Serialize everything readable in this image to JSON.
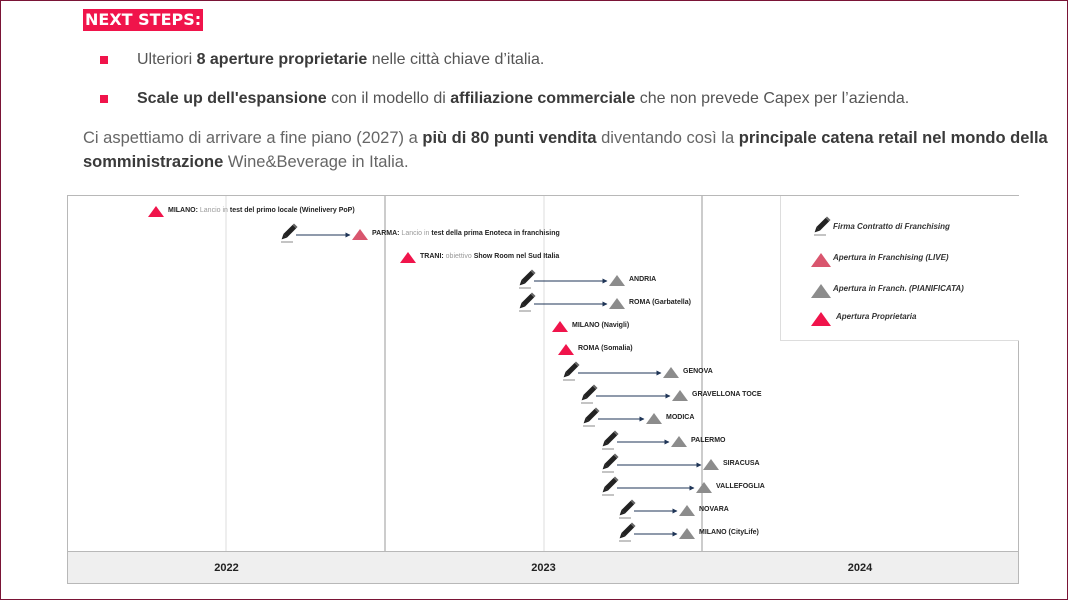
{
  "header": {
    "title": "NEXT STEPS:"
  },
  "bullets": [
    {
      "pre": "Ulteriori ",
      "bold": "8 aperture proprietarie",
      "mid": " nelle città chiave d’italia.",
      "bold2": "",
      "post": ""
    },
    {
      "pre": "",
      "bold": "Scale up dell'espansione",
      "mid": " con il modello di ",
      "bold2": "affiliazione commerciale",
      "post": "  che non prevede Capex per l’azienda."
    }
  ],
  "paragraph": {
    "t1": "Ci aspettiamo di arrivare a fine piano (2027) a ",
    "b1": "più di 80 punti vendita",
    "t2": " diventando così la ",
    "b2": "principale catena retail nel mondo della somministrazione",
    "t3": " Wine&Beverage in Italia."
  },
  "years": [
    "2022",
    "2023",
    "2024"
  ],
  "colors": {
    "accent": "#f0144b",
    "franchising_live": "#d9566e",
    "planned": "#8c8c8c",
    "arrow": "#1f3557"
  },
  "legend": [
    {
      "label": "Firma Contratto di Franchising",
      "icon": "pen-icon"
    },
    {
      "label": "Apertura in Franchising (LIVE)",
      "icon": "triangle-live-icon"
    },
    {
      "label": "Apertura in Franch. (PIANIFICATA)",
      "icon": "triangle-planned-icon"
    },
    {
      "label": "Apertura  Proprietaria",
      "icon": "triangle-owned-icon"
    }
  ],
  "events": [
    {
      "name": "MILANO:",
      "note": " Lancio in ",
      "detail": "test del primo locale (Winelivery PoP)",
      "kind": "owned"
    },
    {
      "name": "PARMA:",
      "note": " Lancio in ",
      "detail": "test della prima Enoteca in franchising",
      "kind": "live"
    },
    {
      "name": "TRANI:",
      "note": " obiettivo ",
      "detail": "Show Room nel Sud Italia",
      "kind": "owned"
    },
    {
      "name": "ANDRIA",
      "note": "",
      "detail": "",
      "kind": "planned"
    },
    {
      "name": "ROMA (Garbatella)",
      "note": "",
      "detail": "",
      "kind": "planned"
    },
    {
      "name": "MILANO (Navigli)",
      "note": "",
      "detail": "",
      "kind": "owned"
    },
    {
      "name": "ROMA (Somalia)",
      "note": "",
      "detail": "",
      "kind": "owned"
    },
    {
      "name": "GENOVA",
      "note": "",
      "detail": "",
      "kind": "planned"
    },
    {
      "name": "GRAVELLONA TOCE",
      "note": "",
      "detail": "",
      "kind": "planned"
    },
    {
      "name": "MODICA",
      "note": "",
      "detail": "",
      "kind": "planned"
    },
    {
      "name": "PALERMO",
      "note": "",
      "detail": "",
      "kind": "planned"
    },
    {
      "name": "SIRACUSA",
      "note": "",
      "detail": "",
      "kind": "planned"
    },
    {
      "name": "VALLEFOGLIA",
      "note": "",
      "detail": "",
      "kind": "planned"
    },
    {
      "name": "NOVARA",
      "note": "",
      "detail": "",
      "kind": "planned"
    },
    {
      "name": "MILANO (CityLife)",
      "note": "",
      "detail": "",
      "kind": "planned"
    }
  ]
}
